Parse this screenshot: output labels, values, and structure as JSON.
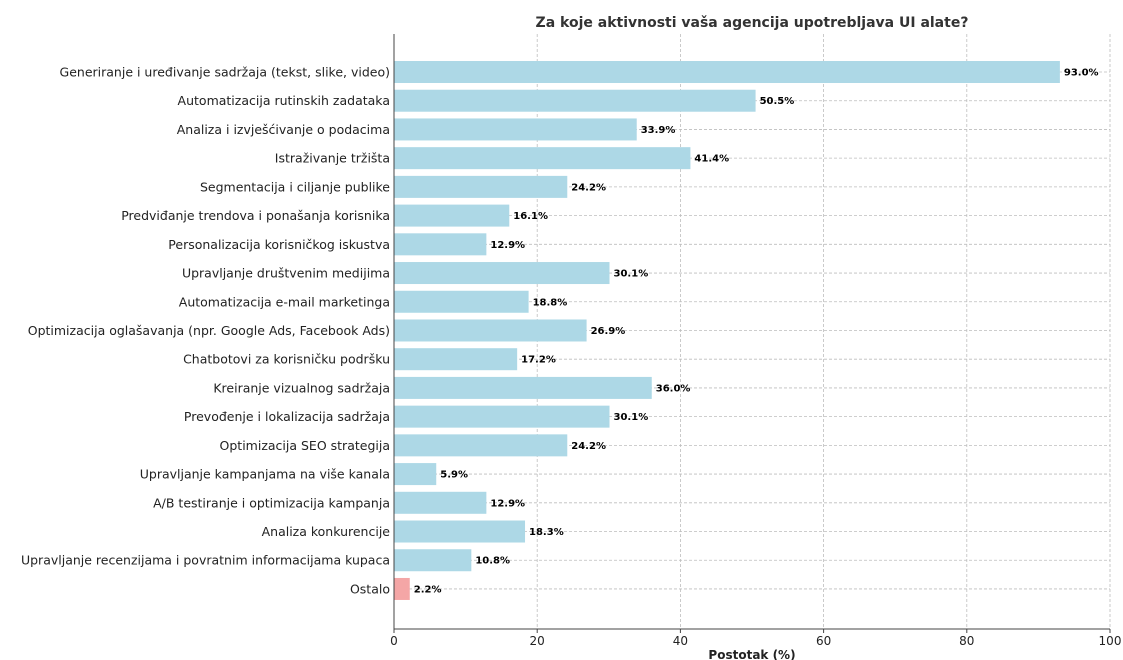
{
  "chart_data": {
    "type": "bar",
    "orientation": "horizontal",
    "title": "Za koje aktivnosti vaša agencija upotrebljava UI alate?",
    "xlabel": "Postotak (%)",
    "ylabel": "",
    "xlim": [
      0,
      100
    ],
    "xticks": [
      0,
      20,
      40,
      60,
      80,
      100
    ],
    "grid": true,
    "categories": [
      "Generiranje i uređivanje sadržaja (tekst, slike, video)",
      "Automatizacija rutinskih zadataka",
      "Analiza i izvješćivanje o podacima",
      "Istraživanje tržišta",
      "Segmentacija i ciljanje publike",
      "Predviđanje trendova i ponašanja korisnika",
      "Personalizacija korisničkog iskustva",
      "Upravljanje društvenim medijima",
      "Automatizacija e-mail marketinga",
      "Optimizacija oglašavanja (npr. Google Ads, Facebook Ads)",
      "Chatbotovi za korisničku podršku",
      "Kreiranje vizualnog sadržaja",
      "Prevođenje i lokalizacija sadržaja",
      "Optimizacija SEO strategija",
      "Upravljanje kampanjama na više kanala",
      "A/B testiranje i optimizacija kampanja",
      "Analiza konkurencije",
      "Upravljanje recenzijama i povratnim informacijama kupaca",
      "Ostalo"
    ],
    "values": [
      93.0,
      50.5,
      33.9,
      41.4,
      24.2,
      16.1,
      12.9,
      30.1,
      18.8,
      26.9,
      17.2,
      36.0,
      30.1,
      24.2,
      5.9,
      12.9,
      18.3,
      10.8,
      2.2
    ],
    "data_labels": [
      "93.0%",
      "50.5%",
      "33.9%",
      "41.4%",
      "24.2%",
      "16.1%",
      "12.9%",
      "30.1%",
      "18.8%",
      "26.9%",
      "17.2%",
      "36.0%",
      "30.1%",
      "24.2%",
      "5.9%",
      "12.9%",
      "18.3%",
      "10.8%",
      "2.2%"
    ],
    "colors": {
      "bar": "#add8e6",
      "highlight_bar": "#f4a6a6",
      "grid": "#bdbdbd",
      "axis": "#444444"
    },
    "highlight_category": "Ostalo"
  }
}
